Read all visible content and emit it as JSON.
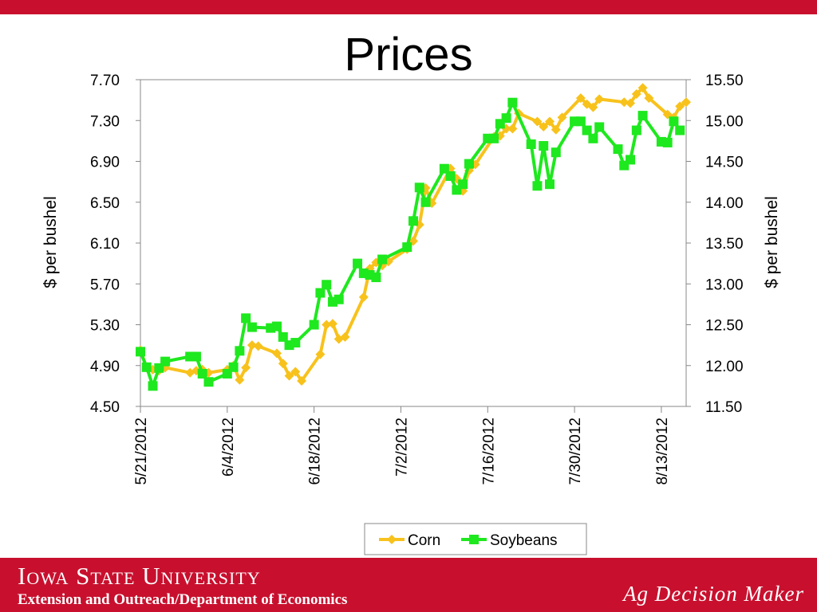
{
  "slide": {
    "title": "Prices",
    "logo_text": "Iowa State University",
    "department": "Extension and Outreach/Department of Economics",
    "brand": "Ag Decision Maker",
    "accent_color": "#c8102e"
  },
  "chart_data": {
    "type": "line",
    "title": "",
    "y_left_label": "$ per bushel",
    "y_right_label": "$ per bushel",
    "y_left_ticks": [
      "7.70",
      "7.30",
      "6.90",
      "6.50",
      "6.10",
      "5.70",
      "5.30",
      "4.90",
      "4.50"
    ],
    "y_right_ticks": [
      "15.50",
      "15.00",
      "14.50",
      "14.00",
      "13.50",
      "13.00",
      "12.50",
      "12.00",
      "11.50"
    ],
    "y_left_lim": [
      4.5,
      7.7
    ],
    "y_right_lim": [
      11.5,
      15.5
    ],
    "x_ticks": [
      "5/21/2012",
      "6/4/2012",
      "6/18/2012",
      "7/2/2012",
      "7/16/2012",
      "7/30/2012",
      "8/13/2012"
    ],
    "x_range_days": [
      0,
      88
    ],
    "legend_position": "bottom",
    "series": [
      {
        "name": "Corn",
        "axis": "left",
        "color": "#f8c21c",
        "marker": "diamond",
        "points": [
          [
            0,
            5.05
          ],
          [
            1,
            4.88
          ],
          [
            2,
            4.86
          ],
          [
            3,
            4.85
          ],
          [
            4,
            4.88
          ],
          [
            8,
            4.83
          ],
          [
            9,
            4.85
          ],
          [
            10,
            4.86
          ],
          [
            11,
            4.83
          ],
          [
            14,
            4.86
          ],
          [
            15,
            4.9
          ],
          [
            16,
            4.76
          ],
          [
            17,
            4.88
          ],
          [
            18,
            5.1
          ],
          [
            19,
            5.09
          ],
          [
            22,
            5.02
          ],
          [
            23,
            4.92
          ],
          [
            24,
            4.8
          ],
          [
            25,
            4.84
          ],
          [
            26,
            4.75
          ],
          [
            29,
            5.01
          ],
          [
            30,
            5.3
          ],
          [
            31,
            5.31
          ],
          [
            32,
            5.16
          ],
          [
            33,
            5.18
          ],
          [
            36,
            5.57
          ],
          [
            37,
            5.85
          ],
          [
            38,
            5.91
          ],
          [
            39,
            5.88
          ],
          [
            40,
            5.92
          ],
          [
            43,
            6.04
          ],
          [
            44,
            6.12
          ],
          [
            45,
            6.28
          ],
          [
            46,
            6.64
          ],
          [
            47,
            6.49
          ],
          [
            50,
            6.83
          ],
          [
            51,
            6.73
          ],
          [
            52,
            6.61
          ],
          [
            53,
            6.81
          ],
          [
            54,
            6.87
          ],
          [
            57,
            7.14
          ],
          [
            58,
            7.15
          ],
          [
            59,
            7.22
          ],
          [
            60,
            7.22
          ],
          [
            61,
            7.37
          ],
          [
            64,
            7.29
          ],
          [
            65,
            7.24
          ],
          [
            66,
            7.29
          ],
          [
            67,
            7.21
          ],
          [
            68,
            7.33
          ],
          [
            71,
            7.52
          ],
          [
            72,
            7.46
          ],
          [
            73,
            7.43
          ],
          [
            74,
            7.51
          ],
          [
            78,
            7.48
          ],
          [
            79,
            7.47
          ],
          [
            80,
            7.56
          ],
          [
            81,
            7.62
          ],
          [
            82,
            7.52
          ],
          [
            85,
            7.36
          ],
          [
            86,
            7.33
          ],
          [
            87,
            7.44
          ],
          [
            88,
            7.48
          ]
        ]
      },
      {
        "name": "Soybeans",
        "axis": "right",
        "color": "#1ee81e",
        "marker": "square",
        "points": [
          [
            0,
            12.17
          ],
          [
            1,
            11.98
          ],
          [
            2,
            11.75
          ],
          [
            3,
            11.97
          ],
          [
            4,
            12.05
          ],
          [
            8,
            12.11
          ],
          [
            9,
            12.11
          ],
          [
            10,
            11.9
          ],
          [
            11,
            11.8
          ],
          [
            14,
            11.9
          ],
          [
            15,
            11.98
          ],
          [
            16,
            12.18
          ],
          [
            17,
            12.58
          ],
          [
            18,
            12.47
          ],
          [
            21,
            12.46
          ],
          [
            22,
            12.48
          ],
          [
            23,
            12.35
          ],
          [
            24,
            12.25
          ],
          [
            25,
            12.28
          ],
          [
            28,
            12.5
          ],
          [
            29,
            12.89
          ],
          [
            30,
            12.99
          ],
          [
            31,
            12.78
          ],
          [
            32,
            12.81
          ],
          [
            35,
            13.25
          ],
          [
            36,
            13.13
          ],
          [
            37,
            13.11
          ],
          [
            38,
            13.08
          ],
          [
            39,
            13.3
          ],
          [
            43,
            13.45
          ],
          [
            44,
            13.77
          ],
          [
            45,
            14.18
          ],
          [
            46,
            14.0
          ],
          [
            49,
            14.41
          ],
          [
            50,
            14.32
          ],
          [
            51,
            14.15
          ],
          [
            52,
            14.22
          ],
          [
            53,
            14.47
          ],
          [
            56,
            14.78
          ],
          [
            57,
            14.78
          ],
          [
            58,
            14.96
          ],
          [
            59,
            15.03
          ],
          [
            60,
            15.22
          ],
          [
            63,
            14.71
          ],
          [
            64,
            14.2
          ],
          [
            65,
            14.69
          ],
          [
            66,
            14.22
          ],
          [
            67,
            14.61
          ],
          [
            70,
            14.99
          ],
          [
            71,
            14.99
          ],
          [
            72,
            14.88
          ],
          [
            73,
            14.78
          ],
          [
            74,
            14.92
          ],
          [
            77,
            14.65
          ],
          [
            78,
            14.45
          ],
          [
            79,
            14.52
          ],
          [
            80,
            14.88
          ],
          [
            81,
            15.06
          ],
          [
            84,
            14.74
          ],
          [
            85,
            14.73
          ],
          [
            86,
            14.99
          ],
          [
            87,
            14.88
          ]
        ]
      }
    ]
  }
}
